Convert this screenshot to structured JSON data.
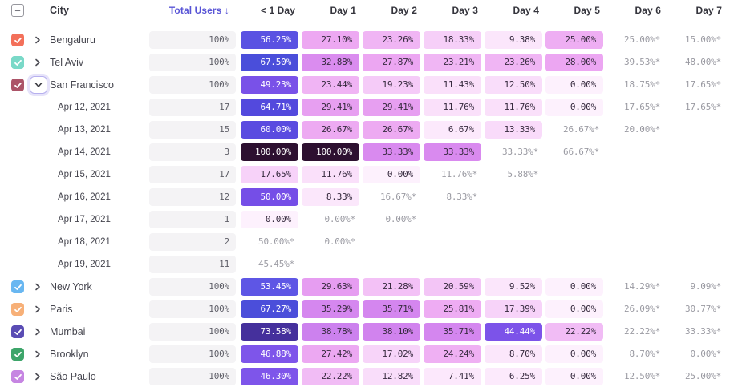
{
  "header": {
    "select_all_glyph": "−",
    "city_label": "City",
    "total_users_label": "Total Users ↓",
    "day_columns": [
      "< 1 Day",
      "Day 1",
      "Day 2",
      "Day 3",
      "Day 4",
      "Day 5",
      "Day 6",
      "Day 7"
    ]
  },
  "colors": {
    "sort_header_text": "#5854d6",
    "header_text": "#35353d",
    "row_label_text": "#45454e",
    "incomplete_text": "#9a9aa2",
    "total_pill_bg": "#f4f3f5",
    "total_pill_text": "#5f5f68",
    "pill_text_dark": "#362a3e",
    "pill_text_light": "#ffffff",
    "chevron_icon": "#4a4a52",
    "expanded_ring_border": "#b7b0ee"
  },
  "heatmap_scale": [
    [
      0,
      "#fdf1fd"
    ],
    [
      6,
      "#fceafc"
    ],
    [
      9.5,
      "#fbe6fb"
    ],
    [
      13,
      "#f9dcfa"
    ],
    [
      17.5,
      "#f7d3f9"
    ],
    [
      21,
      "#f3c3f6"
    ],
    [
      24,
      "#efb1f3"
    ],
    [
      28,
      "#eca6f2"
    ],
    [
      33.5,
      "#d889ef"
    ],
    [
      38.5,
      "#d083ee"
    ],
    [
      44,
      "#7c53e9"
    ],
    [
      47,
      "#7e55ea"
    ],
    [
      49.5,
      "#7850e8"
    ],
    [
      51,
      "#6f4ae6"
    ],
    [
      53.5,
      "#5e56e5"
    ],
    [
      56.5,
      "#5a52e2"
    ],
    [
      60.5,
      "#5a4ae0"
    ],
    [
      65,
      "#5349dd"
    ],
    [
      67.5,
      "#4a4eda"
    ],
    [
      73.5,
      "#45309c"
    ],
    [
      100,
      "#2d1030"
    ]
  ],
  "light_text_threshold": 43,
  "rows": [
    {
      "type": "city",
      "label": "Bengaluru",
      "checkbox_color": "#f3705a",
      "expanded": false,
      "total": "100%",
      "cells": [
        "56.25%",
        "27.10%",
        "23.26%",
        "18.33%",
        "9.38%",
        "25.00%",
        "25.00%*",
        "15.00%*"
      ]
    },
    {
      "type": "city",
      "label": "Tel Aviv",
      "checkbox_color": "#7ad9c8",
      "expanded": false,
      "total": "100%",
      "cells": [
        "67.50%",
        "32.88%",
        "27.87%",
        "23.21%",
        "23.26%",
        "28.00%",
        "39.53%*",
        "48.00%*"
      ]
    },
    {
      "type": "city",
      "label": "San Francisco",
      "checkbox_color": "#ac5468",
      "expanded": true,
      "total": "100%",
      "cells": [
        "49.23%",
        "23.44%",
        "19.23%",
        "11.43%",
        "12.50%",
        "0.00%",
        "18.75%*",
        "17.65%*"
      ]
    },
    {
      "type": "date",
      "label": "Apr 12, 2021",
      "total": "17",
      "cells": [
        "64.71%",
        "29.41%",
        "29.41%",
        "11.76%",
        "11.76%",
        "0.00%",
        "17.65%*",
        "17.65%*"
      ]
    },
    {
      "type": "date",
      "label": "Apr 13, 2021",
      "total": "15",
      "cells": [
        "60.00%",
        "26.67%",
        "26.67%",
        "6.67%",
        "13.33%",
        "26.67%*",
        "20.00%*",
        ""
      ]
    },
    {
      "type": "date",
      "label": "Apr 14, 2021",
      "total": "3",
      "cells": [
        "100.00%",
        "100.00%",
        "33.33%",
        "33.33%",
        "33.33%*",
        "66.67%*",
        "",
        ""
      ]
    },
    {
      "type": "date",
      "label": "Apr 15, 2021",
      "total": "17",
      "cells": [
        "17.65%",
        "11.76%",
        "0.00%",
        "11.76%*",
        "5.88%*",
        "",
        "",
        ""
      ]
    },
    {
      "type": "date",
      "label": "Apr 16, 2021",
      "total": "12",
      "cells": [
        "50.00%",
        "8.33%",
        "16.67%*",
        "8.33%*",
        "",
        "",
        "",
        ""
      ]
    },
    {
      "type": "date",
      "label": "Apr 17, 2021",
      "total": "1",
      "cells": [
        "0.00%",
        "0.00%*",
        "0.00%*",
        "",
        "",
        "",
        "",
        ""
      ]
    },
    {
      "type": "date",
      "label": "Apr 18, 2021",
      "total": "2",
      "cells": [
        "50.00%*",
        "0.00%*",
        "",
        "",
        "",
        "",
        "",
        ""
      ]
    },
    {
      "type": "date",
      "label": "Apr 19, 2021",
      "total": "11",
      "cells": [
        "45.45%*",
        "",
        "",
        "",
        "",
        "",
        "",
        ""
      ]
    },
    {
      "type": "city",
      "label": "New York",
      "checkbox_color": "#69b7f1",
      "expanded": false,
      "total": "100%",
      "cells": [
        "53.45%",
        "29.63%",
        "21.28%",
        "20.59%",
        "9.52%",
        "0.00%",
        "14.29%*",
        "9.09%*"
      ]
    },
    {
      "type": "city",
      "label": "Paris",
      "checkbox_color": "#f7b078",
      "expanded": false,
      "total": "100%",
      "cells": [
        "67.27%",
        "35.29%",
        "35.71%",
        "25.81%",
        "17.39%",
        "0.00%",
        "26.09%*",
        "30.77%*"
      ]
    },
    {
      "type": "city",
      "label": "Mumbai",
      "checkbox_color": "#5a4cb4",
      "expanded": false,
      "total": "100%",
      "cells": [
        "73.58%",
        "38.78%",
        "38.10%",
        "35.71%",
        "44.44%",
        "22.22%",
        "22.22%*",
        "33.33%*"
      ]
    },
    {
      "type": "city",
      "label": "Brooklyn",
      "checkbox_color": "#3da56a",
      "expanded": false,
      "total": "100%",
      "cells": [
        "46.88%",
        "27.42%",
        "17.02%",
        "24.24%",
        "8.70%",
        "0.00%",
        "8.70%*",
        "0.00%*"
      ]
    },
    {
      "type": "city",
      "label": "São Paulo",
      "checkbox_color": "#c685e2",
      "expanded": false,
      "total": "100%",
      "cells": [
        "46.30%",
        "22.22%",
        "12.82%",
        "7.41%",
        "6.25%",
        "0.00%",
        "12.50%*",
        "25.00%*"
      ]
    }
  ]
}
